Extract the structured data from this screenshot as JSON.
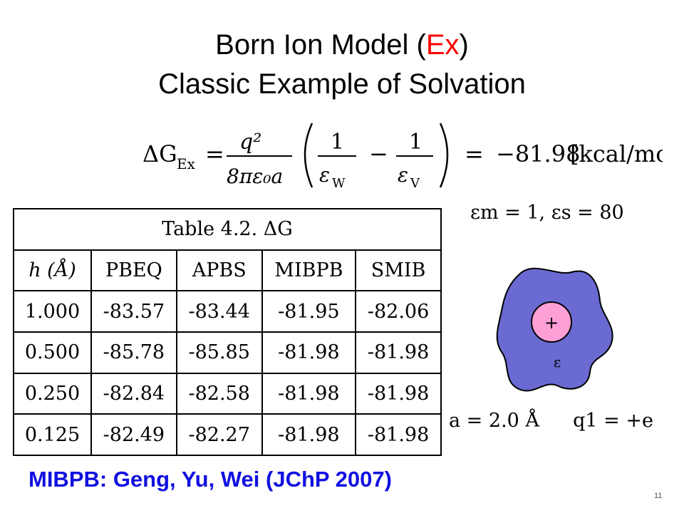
{
  "title": {
    "line1_before": "Born Ion Model (",
    "line1_accent": "Ex",
    "line1_after": ")",
    "line2": "Classic Example of Solvation",
    "accent_color": "#ff0000"
  },
  "equation": {
    "lhs": "ΔG",
    "lhs_sub": "Ex",
    "numerator": "q²",
    "denominator": "8πε₀a",
    "term1_den": "ε",
    "term1_sub": "W",
    "term2_den": "ε",
    "term2_sub": "V",
    "one": "1",
    "result": "−81.98",
    "unit": "[kcal/mol]"
  },
  "table": {
    "caption": "Table 4.2. ΔG",
    "headers": [
      "h (Å)",
      "PBEQ",
      "APBS",
      "MIBPB",
      "SMIB"
    ],
    "rows": [
      [
        "1.000",
        "-83.57",
        "-83.44",
        "-81.95",
        "-82.06"
      ],
      [
        "0.500",
        "-85.78",
        "-85.85",
        "-81.98",
        "-81.98"
      ],
      [
        "0.250",
        "-82.84",
        "-82.58",
        "-81.98",
        "-81.98"
      ],
      [
        "0.125",
        "-82.49",
        "-82.27",
        "-81.98",
        "-81.98"
      ]
    ]
  },
  "params": {
    "epsilon_text": "εm = 1, εs = 80",
    "a_text": "a = 2.0 Å",
    "q_text": "q1 = +e"
  },
  "diagram": {
    "plus_label": "+",
    "epsilon_label": "ε",
    "blob_color": "#6a6ad2",
    "ion_color": "#ff9fd7"
  },
  "citation": "MIBPB: Geng, Yu, Wei (JChP 2007)",
  "citation_color": "#1010e0",
  "slide_number": "11"
}
